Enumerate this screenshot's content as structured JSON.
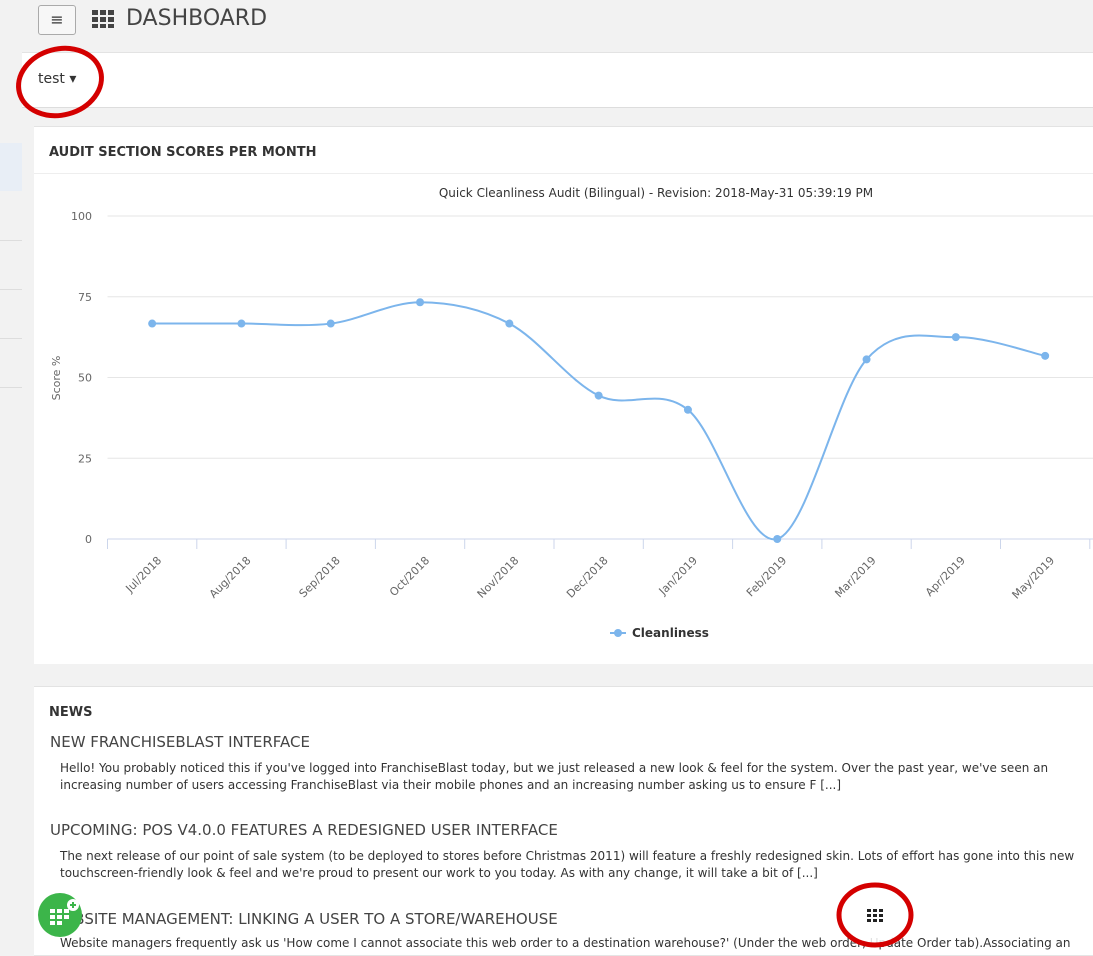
{
  "header": {
    "title": "DASHBOARD"
  },
  "selector": {
    "label": "test"
  },
  "chart_panel": {
    "title": "AUDIT SECTION SCORES PER MONTH"
  },
  "chart_data": {
    "type": "line",
    "title": "Quick Cleanliness Audit (Bilingual) - Revision: 2018-May-31 05:39:19 PM",
    "y_label": "Score %",
    "categories": [
      "Jul/2018",
      "Aug/2018",
      "Sep/2018",
      "Oct/2018",
      "Nov/2018",
      "Dec/2018",
      "Jan/2019",
      "Feb/2019",
      "Mar/2019",
      "Apr/2019",
      "May/2019"
    ],
    "series": [
      {
        "name": "Cleanliness",
        "color": "#7cb5ec",
        "values": [
          66.7,
          66.7,
          66.7,
          73.3,
          66.7,
          44.4,
          40,
          0,
          55.6,
          62.5,
          56.7
        ]
      }
    ],
    "ylim": [
      0,
      100
    ],
    "yticks": [
      0,
      25,
      50,
      75,
      100
    ],
    "grid": true,
    "smooth": true
  },
  "news": {
    "title": "NEWS",
    "items": [
      {
        "title": "NEW FRANCHISEBLAST INTERFACE",
        "body": "Hello! You probably noticed this if you've logged into FranchiseBlast today, but we just released a new look & feel for the system. Over the past year, we've seen an increasing number of users accessing FranchiseBlast via their mobile phones and an increasing number asking us to ensure F [...]"
      },
      {
        "title": "UPCOMING: POS V4.0.0 FEATURES A REDESIGNED USER INTERFACE",
        "body": "The next release of our point of sale system (to be deployed to stores before Christmas 2011) will feature a freshly redesigned skin. Lots of effort has gone into this new touchscreen-friendly look & feel and we're proud to present our work to you today. As with any change, it will take a bit of [...]"
      },
      {
        "title": "WEBSITE MANAGEMENT: LINKING A USER TO A STORE/WAREHOUSE",
        "body": "Website managers frequently ask us 'How come I cannot associate this web order to a destination warehouse?' (Under the web order, Update Order tab).Associating an"
      }
    ]
  }
}
